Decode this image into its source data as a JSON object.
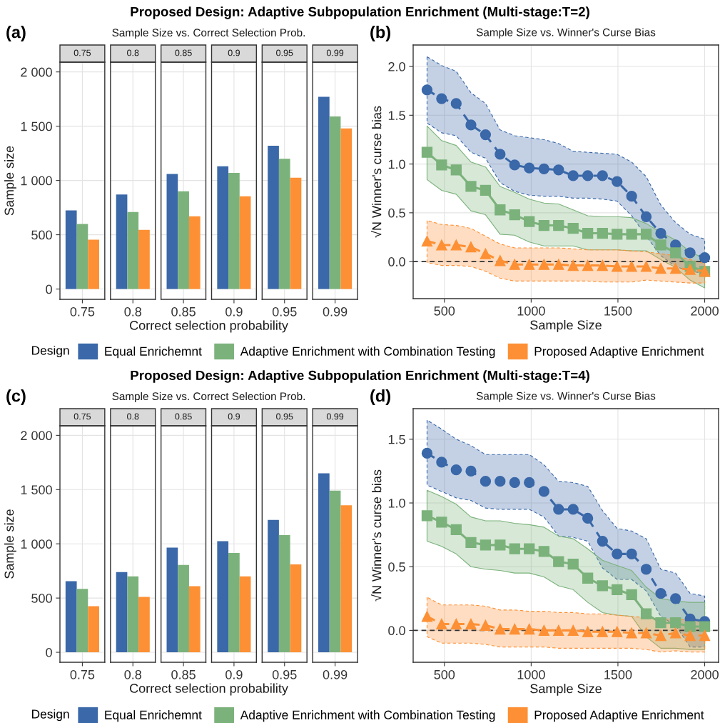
{
  "chart_data": [
    {
      "type": "bar",
      "title": "Sample Size vs. Correct Selection Prob.",
      "annotations": [
        "Proposed Design: Adaptive Subpopulation Enrichment (Multi-stage:T=2)",
        "(a)"
      ],
      "xlabel": "Correct selection probability",
      "ylabel": "Sample size",
      "categories": [
        "0.75",
        "0.8",
        "0.85",
        "0.9",
        "0.95",
        "0.99"
      ],
      "series": [
        {
          "color": "#3a68a8",
          "values": [
            725,
            870,
            1060,
            1130,
            1320,
            1770
          ]
        },
        {
          "color": "#7bb27b",
          "values": [
            600,
            710,
            900,
            1070,
            1200,
            1590
          ]
        },
        {
          "color": "#fd9034",
          "values": [
            455,
            545,
            670,
            855,
            1025,
            1480
          ]
        }
      ],
      "ylim": [
        -95,
        2090
      ],
      "yticks": [
        0,
        500,
        {
          "value": 1000,
          "label": "1 000"
        },
        {
          "value": 1500,
          "label": "1 500"
        },
        {
          "value": 2000,
          "label": "2 000"
        }
      ],
      "grid": true
    },
    {
      "type": "line",
      "title": "Sample Size vs. Winner's Curse Bias",
      "annotations": [
        "(b)"
      ],
      "xlabel": "Sample Size",
      "ylabel": "√N Winner's curse bias",
      "legend": "bottom",
      "legend_title": "Design",
      "x": [
        400,
        484,
        568,
        653,
        737,
        821,
        905,
        989,
        1074,
        1158,
        1242,
        1326,
        1411,
        1495,
        1579,
        1663,
        1747,
        1832,
        1916,
        2000
      ],
      "series": [
        {
          "name": "Equal Enrichemnt",
          "color": "#3a68a8",
          "marker": "circle",
          "line_style": "dashed",
          "values": [
            1.76,
            1.67,
            1.62,
            1.4,
            1.3,
            1.1,
            0.99,
            0.96,
            0.95,
            0.94,
            0.88,
            0.88,
            0.88,
            0.82,
            0.67,
            0.46,
            0.29,
            0.17,
            0.09,
            0.04
          ],
          "upper": [
            2.1,
            2.01,
            1.95,
            1.73,
            1.62,
            1.35,
            1.29,
            1.27,
            1.25,
            1.21,
            1.13,
            1.12,
            1.11,
            1.1,
            1.02,
            0.87,
            0.58,
            0.4,
            0.28,
            0.23
          ],
          "lower": [
            1.42,
            1.32,
            1.29,
            1.12,
            1.06,
            0.81,
            0.72,
            0.68,
            0.67,
            0.67,
            0.65,
            0.65,
            0.64,
            0.62,
            0.47,
            0.26,
            0.06,
            -0.05,
            -0.1,
            -0.12
          ]
        },
        {
          "name": "Adaptive Enrichment with Combination Testing",
          "color": "#7bb27b",
          "marker": "square",
          "line_style": "solid",
          "values": [
            1.12,
            0.99,
            0.94,
            0.77,
            0.73,
            0.53,
            0.48,
            0.41,
            0.37,
            0.37,
            0.34,
            0.29,
            0.29,
            0.28,
            0.28,
            0.28,
            0.17,
            0.09,
            -0.05,
            -0.1
          ],
          "upper": [
            1.39,
            1.24,
            1.19,
            1.02,
            0.97,
            0.77,
            0.71,
            0.64,
            0.6,
            0.59,
            0.53,
            0.47,
            0.46,
            0.46,
            0.45,
            0.39,
            0.3,
            0.22,
            0.1,
            0.03
          ],
          "lower": [
            0.84,
            0.73,
            0.69,
            0.52,
            0.48,
            0.28,
            0.27,
            0.2,
            0.16,
            0.16,
            0.16,
            0.12,
            0.12,
            0.12,
            0.11,
            0.11,
            0.02,
            -0.06,
            -0.19,
            -0.27
          ]
        },
        {
          "name": "Proposed Adaptive Enrichment",
          "color": "#fd9034",
          "marker": "triangle",
          "line_style": "dashed",
          "values": [
            0.21,
            0.17,
            0.17,
            0.15,
            0.08,
            0.01,
            -0.03,
            -0.03,
            -0.03,
            -0.03,
            -0.04,
            -0.04,
            -0.04,
            -0.05,
            -0.05,
            -0.05,
            -0.07,
            -0.07,
            -0.08,
            -0.1
          ],
          "upper": [
            0.42,
            0.38,
            0.37,
            0.34,
            0.26,
            0.18,
            0.14,
            0.14,
            0.14,
            0.14,
            0.13,
            0.12,
            0.12,
            0.12,
            0.11,
            0.1,
            0.08,
            0.06,
            0.02,
            -0.02
          ],
          "lower": [
            -0.01,
            -0.04,
            -0.04,
            -0.05,
            -0.1,
            -0.17,
            -0.2,
            -0.2,
            -0.2,
            -0.2,
            -0.2,
            -0.2,
            -0.21,
            -0.21,
            -0.21,
            -0.19,
            -0.2,
            -0.21,
            -0.22,
            -0.22
          ]
        }
      ],
      "xlim": [
        320,
        2080
      ],
      "xticks": [
        500,
        1000,
        1500,
        2000
      ],
      "ylim": [
        -0.38,
        2.22
      ],
      "yticks": [
        {
          "value": 0,
          "label": "0.0"
        },
        {
          "value": 0.5,
          "label": "0.5"
        },
        {
          "value": 1,
          "label": "1.0"
        },
        {
          "value": 1.5,
          "label": "1.5"
        },
        {
          "value": 2,
          "label": "2.0"
        }
      ],
      "grid": true,
      "ref_lines": [
        {
          "axis": "y",
          "value": 0,
          "color": "#333333",
          "line_style": "dashed"
        }
      ]
    },
    {
      "type": "bar",
      "title": "Sample Size vs. Correct Selection Prob.",
      "annotations": [
        "Proposed Design: Adaptive Subpopulation Enrichment (Multi-stage:T=4)",
        "(c)"
      ],
      "xlabel": "Correct selection probability",
      "ylabel": "Sample size",
      "categories": [
        "0.75",
        "0.8",
        "0.85",
        "0.9",
        "0.95",
        "0.99"
      ],
      "series": [
        {
          "color": "#3a68a8",
          "values": [
            655,
            740,
            965,
            1025,
            1220,
            1650
          ]
        },
        {
          "color": "#7bb27b",
          "values": [
            585,
            700,
            805,
            915,
            1080,
            1490
          ]
        },
        {
          "color": "#fd9034",
          "values": [
            425,
            510,
            610,
            700,
            810,
            1355
          ]
        }
      ],
      "ylim": [
        -92,
        2088
      ],
      "yticks": [
        0,
        500,
        {
          "value": 1000,
          "label": "1 000"
        },
        {
          "value": 1500,
          "label": "1 500"
        },
        {
          "value": 2000,
          "label": "2 000"
        }
      ],
      "grid": true
    },
    {
      "type": "line",
      "title": "Sample Size vs. Winner's Curse Bias",
      "annotations": [
        "(d)"
      ],
      "xlabel": "Sample Size",
      "ylabel": "√N Winner's curse bias",
      "legend": "bottom",
      "legend_title": "Design",
      "x": [
        400,
        484,
        568,
        653,
        737,
        821,
        905,
        989,
        1074,
        1158,
        1242,
        1326,
        1411,
        1495,
        1579,
        1663,
        1747,
        1832,
        1916,
        2000
      ],
      "series": [
        {
          "name": "Equal Enrichemnt",
          "color": "#3a68a8",
          "marker": "circle",
          "line_style": "dashed",
          "values": [
            1.39,
            1.32,
            1.26,
            1.25,
            1.17,
            1.17,
            1.16,
            1.16,
            1.09,
            0.95,
            0.95,
            0.88,
            0.7,
            0.6,
            0.6,
            0.48,
            0.29,
            0.25,
            0.09,
            0.07
          ],
          "upper": [
            1.65,
            1.58,
            1.5,
            1.45,
            1.38,
            1.38,
            1.38,
            1.38,
            1.3,
            1.17,
            1.16,
            1.13,
            0.94,
            0.8,
            0.78,
            0.72,
            0.48,
            0.45,
            0.29,
            0.27
          ],
          "lower": [
            1.14,
            1.09,
            1.04,
            1.02,
            0.96,
            0.95,
            0.95,
            0.95,
            0.89,
            0.74,
            0.73,
            0.7,
            0.49,
            0.4,
            0.4,
            0.31,
            0.11,
            0.04,
            -0.13,
            -0.13
          ]
        },
        {
          "name": "Adaptive Enrichment with Combination Testing",
          "color": "#7bb27b",
          "marker": "square",
          "line_style": "solid",
          "values": [
            0.9,
            0.85,
            0.79,
            0.69,
            0.67,
            0.67,
            0.64,
            0.64,
            0.62,
            0.54,
            0.52,
            0.41,
            0.35,
            0.32,
            0.28,
            0.13,
            0.06,
            0.06,
            0.03,
            0.03
          ],
          "upper": [
            1.1,
            1.05,
            0.99,
            0.89,
            0.86,
            0.86,
            0.84,
            0.83,
            0.81,
            0.74,
            0.72,
            0.64,
            0.55,
            0.51,
            0.47,
            0.34,
            0.25,
            0.23,
            0.22,
            0.22
          ],
          "lower": [
            0.7,
            0.66,
            0.6,
            0.5,
            0.48,
            0.47,
            0.45,
            0.45,
            0.42,
            0.35,
            0.32,
            0.22,
            0.14,
            0.12,
            0.11,
            -0.05,
            -0.14,
            -0.14,
            -0.15,
            -0.15
          ]
        },
        {
          "name": "Proposed Adaptive Enrichment",
          "color": "#fd9034",
          "marker": "triangle",
          "line_style": "dashed",
          "values": [
            0.11,
            0.05,
            0.05,
            0.05,
            0.04,
            0.01,
            0.01,
            0.01,
            0.0,
            0.0,
            0.0,
            -0.01,
            -0.01,
            -0.01,
            -0.02,
            -0.02,
            -0.04,
            -0.02,
            -0.04,
            -0.04
          ],
          "upper": [
            0.26,
            0.2,
            0.2,
            0.2,
            0.19,
            0.16,
            0.16,
            0.15,
            0.15,
            0.14,
            0.14,
            0.13,
            0.13,
            0.12,
            0.11,
            0.1,
            0.09,
            0.09,
            0.08,
            0.08
          ],
          "lower": [
            -0.05,
            -0.1,
            -0.1,
            -0.1,
            -0.11,
            -0.13,
            -0.13,
            -0.13,
            -0.13,
            -0.14,
            -0.14,
            -0.14,
            -0.14,
            -0.14,
            -0.14,
            -0.15,
            -0.17,
            -0.16,
            -0.17,
            -0.17
          ]
        }
      ],
      "xlim": [
        320,
        2080
      ],
      "xticks": [
        500,
        1000,
        1500,
        2000
      ],
      "ylim": [
        -0.25,
        1.74
      ],
      "yticks": [
        {
          "value": 0,
          "label": "0.0"
        },
        {
          "value": 0.5,
          "label": "0.5"
        },
        {
          "value": 1,
          "label": "1.0"
        },
        {
          "value": 1.5,
          "label": "1.5"
        }
      ],
      "grid": true,
      "ref_lines": [
        {
          "axis": "y",
          "value": 0,
          "color": "#333333",
          "line_style": "dashed"
        }
      ]
    }
  ]
}
